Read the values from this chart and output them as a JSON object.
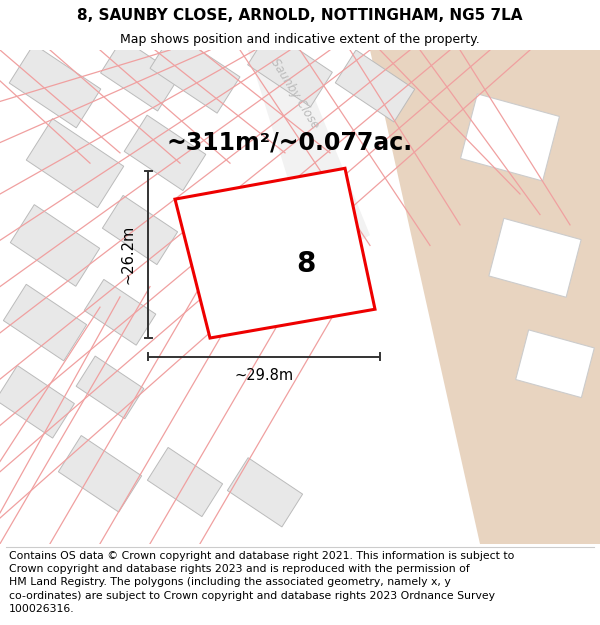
{
  "title": "8, SAUNBY CLOSE, ARNOLD, NOTTINGHAM, NG5 7LA",
  "subtitle": "Map shows position and indicative extent of the property.",
  "footer": "Contains OS data © Crown copyright and database right 2021. This information is subject to Crown copyright and database rights 2023 and is reproduced with the permission of HM Land Registry. The polygons (including the associated geometry, namely x, y co-ordinates) are subject to Crown copyright and database rights 2023 Ordnance Survey 100026316.",
  "area_label": "~311m²/~0.077ac.",
  "width_label": "~29.8m",
  "height_label": "~26.2m",
  "plot_number": "8",
  "map_bg_color": "#f8f8f8",
  "road_tan_color": "#e8d4c0",
  "plot_outline_color": "#ee0000",
  "building_fill_color": "#e8e8e8",
  "building_outline_color": "#bbbbbb",
  "boundary_line_color": "#f0a0a0",
  "street_label": "Saunby Close",
  "street_label_color": "#bbbbbb",
  "dim_line_color": "#333333",
  "title_fontsize": 11,
  "subtitle_fontsize": 9,
  "footer_fontsize": 7.8,
  "area_fontsize": 17,
  "plot_num_fontsize": 20
}
